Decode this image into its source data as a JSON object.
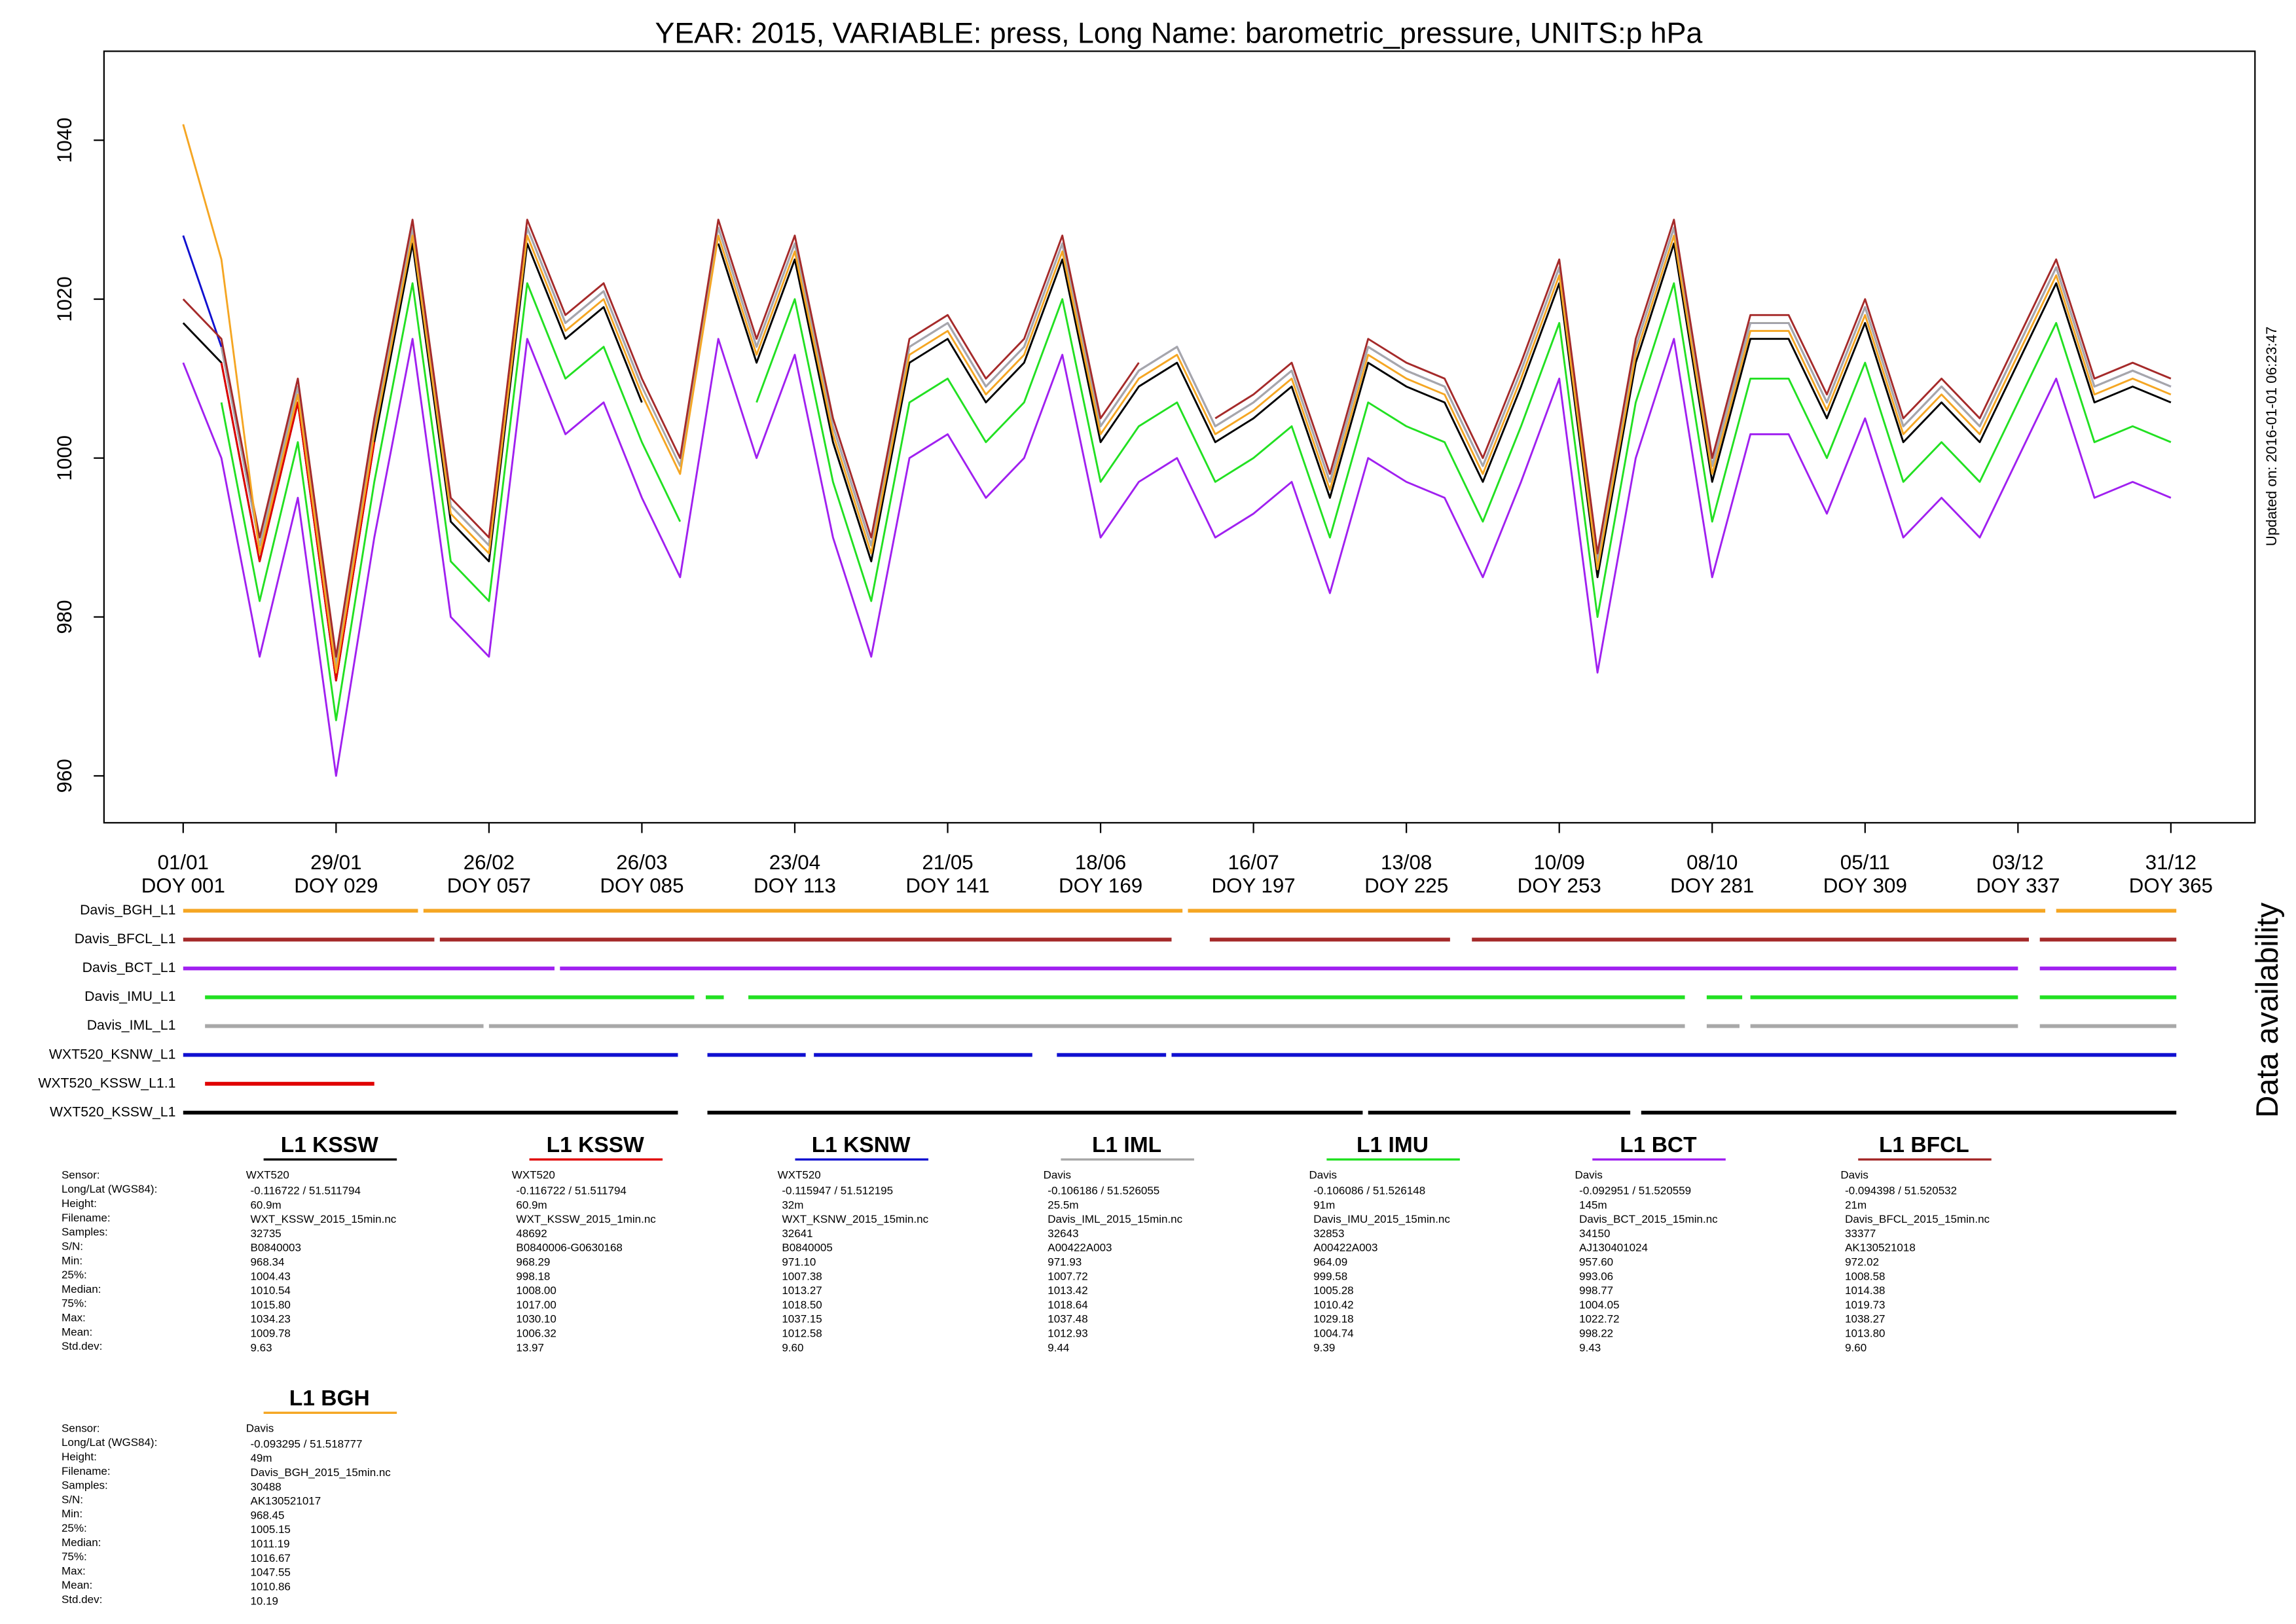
{
  "chart_data": {
    "type": "line",
    "title": "YEAR: 2015, VARIABLE: press, Long Name: barometric_pressure, UNITS:p hPa",
    "updated": "Updated on: 2016-01-01 06:23:47",
    "availability_label": "Data availability",
    "xlim": [
      -13.5,
      380.4
    ],
    "ylim": [
      954.1,
      1051.2
    ],
    "yticks": [
      960,
      980,
      1000,
      1020,
      1040
    ],
    "xticks": [
      {
        "value": 1,
        "label": "01/01"
      },
      {
        "value": 29,
        "label": "29/01"
      },
      {
        "value": 57,
        "label": "26/02"
      },
      {
        "value": 85,
        "label": "26/03"
      },
      {
        "value": 113,
        "label": "23/04"
      },
      {
        "value": 141,
        "label": "21/05"
      },
      {
        "value": 169,
        "label": "18/06"
      },
      {
        "value": 197,
        "label": "16/07"
      },
      {
        "value": 225,
        "label": "13/08"
      },
      {
        "value": 253,
        "label": "10/09"
      },
      {
        "value": 281,
        "label": "08/10"
      },
      {
        "value": 309,
        "label": "05/11"
      },
      {
        "value": 337,
        "label": "03/12"
      },
      {
        "value": 365,
        "label": "31/12"
      }
    ],
    "xtick_doy": [
      "DOY 001",
      "DOY 029",
      "DOY 057",
      "DOY 085",
      "DOY 113",
      "DOY 141",
      "DOY 169",
      "DOY 197",
      "DOY 225",
      "DOY 253",
      "DOY 281",
      "DOY 309",
      "DOY 337",
      "DOY 365"
    ],
    "x": [
      1,
      8,
      15,
      22,
      29,
      36,
      43,
      50,
      57,
      64,
      71,
      78,
      85,
      92,
      99,
      106,
      113,
      120,
      127,
      134,
      141,
      148,
      155,
      162,
      169,
      176,
      183,
      190,
      197,
      204,
      211,
      218,
      225,
      232,
      239,
      246,
      253,
      260,
      267,
      274,
      281,
      288,
      295,
      302,
      309,
      316,
      323,
      330,
      337,
      344,
      351,
      358,
      365
    ],
    "series": [
      {
        "name": "WXT520_KSSW_L1",
        "color": "#000000",
        "availability": [
          [
            1,
            91.6
          ],
          [
            97,
            217
          ],
          [
            218,
            266
          ],
          [
            268,
            366
          ]
        ],
        "values": [
          1017,
          1012,
          987,
          1007,
          972,
          1002,
          1027,
          992,
          987,
          1027,
          1015,
          1019,
          1007,
          null,
          1027,
          1012,
          1025,
          1002,
          987,
          1012,
          1015,
          1007,
          1012,
          1025,
          1002,
          1009,
          1012,
          1002,
          1005,
          1009,
          995,
          1012,
          1009,
          1007,
          997,
          1009,
          1022,
          985,
          1012,
          1027,
          997,
          1015,
          1015,
          1005,
          1017,
          1002,
          1007,
          1002,
          1012,
          1022,
          1007,
          1009,
          1007
        ]
      },
      {
        "name": "WXT520_KSSW_L1.1",
        "color": "#e00000",
        "availability": [
          [
            5,
            36
          ]
        ],
        "values": [
          null,
          1012,
          987,
          1007,
          972,
          1002,
          null,
          null,
          null,
          null,
          null,
          null,
          null,
          null,
          null,
          null,
          null,
          null,
          null,
          null,
          null,
          null,
          null,
          null,
          null,
          null,
          null,
          null,
          null,
          null,
          null,
          null,
          null,
          null,
          null,
          null,
          null,
          null,
          null,
          null,
          null,
          null,
          null,
          null,
          null,
          null,
          null,
          null,
          null,
          null,
          null,
          null,
          null
        ]
      },
      {
        "name": "WXT520_KSNW_L1",
        "color": "#1010d0",
        "availability": [
          [
            1,
            91.6
          ],
          [
            97,
            115
          ],
          [
            116.5,
            156.5
          ],
          [
            161,
            181
          ],
          [
            182,
            366
          ]
        ],
        "values": [
          1028,
          1014,
          989,
          1009,
          974,
          1004,
          1029,
          994,
          989,
          1029,
          1017,
          1021,
          1009,
          null,
          1029,
          1014,
          1027,
          1004,
          989,
          1014,
          1017,
          1009,
          1014,
          1027,
          1004,
          1011,
          1014,
          1004,
          1007,
          1011,
          997,
          1014,
          1011,
          1009,
          999,
          1011,
          1024,
          987,
          1014,
          1029,
          999,
          1017,
          1017,
          1007,
          1019,
          1004,
          1009,
          1004,
          1014,
          1024,
          1009,
          1011,
          1009
        ]
      },
      {
        "name": "Davis_IML_L1",
        "color": "#a8a8a8",
        "availability": [
          [
            5,
            56
          ],
          [
            57,
            276
          ],
          [
            280,
            286
          ],
          [
            288,
            337
          ],
          [
            341,
            366
          ]
        ],
        "values": [
          null,
          1014,
          989,
          1009,
          974,
          1004,
          1029,
          994,
          989,
          1029,
          1017,
          1021,
          1009,
          999,
          1029,
          1014,
          1027,
          1004,
          989,
          1014,
          1017,
          1009,
          1014,
          1027,
          1004,
          1011,
          1014,
          1004,
          1007,
          1011,
          997,
          1014,
          1011,
          1009,
          999,
          1011,
          1024,
          987,
          1014,
          1029,
          999,
          1017,
          1017,
          1007,
          1019,
          1004,
          1009,
          1004,
          1014,
          1024,
          1009,
          1011,
          1009
        ]
      },
      {
        "name": "Davis_IMU_L1",
        "color": "#22e022",
        "availability": [
          [
            5,
            94.6
          ],
          [
            96.7,
            100
          ],
          [
            104.5,
            276
          ],
          [
            280,
            286.5
          ],
          [
            288,
            337
          ],
          [
            341,
            366
          ]
        ],
        "values": [
          null,
          1007,
          982,
          1002,
          967,
          997,
          1022,
          987,
          982,
          1022,
          1010,
          1014,
          1002,
          992,
          null,
          1007,
          1020,
          997,
          982,
          1007,
          1010,
          1002,
          1007,
          1020,
          997,
          1004,
          1007,
          997,
          1000,
          1004,
          990,
          1007,
          1004,
          1002,
          992,
          1004,
          1017,
          980,
          1007,
          1022,
          992,
          1010,
          1010,
          1000,
          1012,
          997,
          1002,
          997,
          1007,
          1017,
          1002,
          1004,
          1002
        ]
      },
      {
        "name": "Davis_BCT_L1",
        "color": "#a020f0",
        "availability": [
          [
            1,
            69
          ],
          [
            70,
            337
          ],
          [
            341,
            366
          ]
        ],
        "values": [
          1012,
          1000,
          975,
          995,
          960,
          990,
          1015,
          980,
          975,
          1015,
          1003,
          1007,
          995,
          985,
          1015,
          1000,
          1013,
          990,
          975,
          1000,
          1003,
          995,
          1000,
          1013,
          990,
          997,
          1000,
          990,
          993,
          997,
          983,
          1000,
          997,
          995,
          985,
          997,
          1010,
          973,
          1000,
          1015,
          985,
          1003,
          1003,
          993,
          1005,
          990,
          995,
          990,
          1000,
          1010,
          995,
          997,
          995
        ]
      },
      {
        "name": "Davis_BFCL_L1",
        "color": "#a52a2a",
        "availability": [
          [
            1,
            47
          ],
          [
            48,
            182
          ],
          [
            189,
            233
          ],
          [
            237,
            339
          ],
          [
            341,
            366
          ]
        ],
        "values": [
          1020,
          1015,
          990,
          1010,
          975,
          1005,
          1030,
          995,
          990,
          1030,
          1018,
          1022,
          1010,
          1000,
          1030,
          1015,
          1028,
          1005,
          990,
          1015,
          1018,
          1010,
          1015,
          1028,
          1005,
          1012,
          null,
          1005,
          1008,
          1012,
          998,
          1015,
          1012,
          1010,
          1000,
          1012,
          1025,
          988,
          1015,
          1030,
          1000,
          1018,
          1018,
          1008,
          1020,
          1005,
          1010,
          1005,
          1015,
          1025,
          1010,
          1012,
          1010
        ]
      },
      {
        "name": "Davis_BGH_L1",
        "color": "#f5a623",
        "availability": [
          [
            1,
            44
          ],
          [
            45,
            184
          ],
          [
            185,
            342
          ],
          [
            344,
            366
          ]
        ],
        "values": [
          1042,
          1025,
          988,
          1008,
          973,
          1003,
          1028,
          993,
          988,
          1028,
          1016,
          1020,
          1008,
          998,
          1028,
          1013,
          1026,
          1003,
          988,
          1013,
          1016,
          1008,
          1013,
          1026,
          1003,
          1010,
          1013,
          1003,
          1006,
          1010,
          996,
          1013,
          1010,
          1008,
          998,
          1010,
          1023,
          986,
          1013,
          1028,
          998,
          1016,
          1016,
          1006,
          1018,
          1003,
          1008,
          1003,
          1013,
          1023,
          1008,
          1010,
          1008
        ]
      }
    ]
  },
  "stat_labels": [
    "Sensor:",
    "Long/Lat (WGS84):",
    "Height:",
    "Filename:",
    "Samples:",
    "S/N:",
    "Min:",
    "25%:",
    "Median:",
    "75%:",
    "Max:",
    "Mean:",
    "Std.dev:"
  ],
  "panels": [
    {
      "title": "L1 KSSW",
      "values": [
        "WXT520",
        "-0.116722 / 51.511794",
        "60.9m",
        "WXT_KSSW_2015_15min.nc",
        "32735",
        "B0840003",
        "968.34",
        "1004.43",
        "1010.54",
        "1015.80",
        "1034.23",
        "1009.78",
        "9.63"
      ]
    },
    {
      "title": "L1 KSSW",
      "values": [
        "WXT520",
        "-0.116722 / 51.511794",
        "60.9m",
        "WXT_KSSW_2015_1min.nc",
        "48692",
        "B0840006-G0630168",
        "968.29",
        "998.18",
        "1008.00",
        "1017.00",
        "1030.10",
        "1006.32",
        "13.97"
      ]
    },
    {
      "title": "L1 KSNW",
      "values": [
        "WXT520",
        "-0.115947 / 51.512195",
        "32m",
        "WXT_KSNW_2015_15min.nc",
        "32641",
        "B0840005",
        "971.10",
        "1007.38",
        "1013.27",
        "1018.50",
        "1037.15",
        "1012.58",
        "9.60"
      ]
    },
    {
      "title": "L1 IML",
      "values": [
        "Davis",
        "-0.106186 / 51.526055",
        "25.5m",
        "Davis_IML_2015_15min.nc",
        "32643",
        "A00422A003",
        "971.93",
        "1007.72",
        "1013.42",
        "1018.64",
        "1037.48",
        "1012.93",
        "9.44"
      ]
    },
    {
      "title": "L1 IMU",
      "values": [
        "Davis",
        "-0.106086 / 51.526148",
        "91m",
        "Davis_IMU_2015_15min.nc",
        "32853",
        "A00422A003",
        "964.09",
        "999.58",
        "1005.28",
        "1010.42",
        "1029.18",
        "1004.74",
        "9.39"
      ]
    },
    {
      "title": "L1 BCT",
      "values": [
        "Davis",
        "-0.092951 / 51.520559",
        "145m",
        "Davis_BCT_2015_15min.nc",
        "34150",
        "AJ130401024",
        "957.60",
        "993.06",
        "998.77",
        "1004.05",
        "1022.72",
        "998.22",
        "9.43"
      ]
    },
    {
      "title": "L1 BFCL",
      "values": [
        "Davis",
        "-0.094398 / 51.520532",
        "21m",
        "Davis_BFCL_2015_15min.nc",
        "33377",
        "AK130521018",
        "972.02",
        "1008.58",
        "1014.38",
        "1019.73",
        "1038.27",
        "1013.80",
        "9.60"
      ]
    },
    {
      "title": "L1 BGH",
      "values": [
        "Davis",
        "-0.093295 / 51.518777",
        "49m",
        "Davis_BGH_2015_15min.nc",
        "30488",
        "AK130521017",
        "968.45",
        "1005.15",
        "1011.19",
        "1016.67",
        "1047.55",
        "1010.86",
        "10.19"
      ]
    }
  ]
}
